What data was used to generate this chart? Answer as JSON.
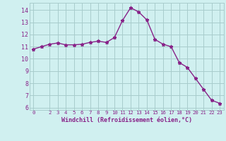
{
  "x": [
    0,
    1,
    2,
    3,
    4,
    5,
    6,
    7,
    8,
    9,
    10,
    11,
    12,
    13,
    14,
    15,
    16,
    17,
    18,
    19,
    20,
    21,
    22,
    23
  ],
  "y": [
    10.8,
    11.0,
    11.2,
    11.3,
    11.15,
    11.15,
    11.2,
    11.35,
    11.45,
    11.35,
    11.75,
    13.15,
    14.2,
    13.85,
    13.2,
    11.6,
    11.2,
    11.0,
    9.7,
    9.3,
    8.4,
    7.5,
    6.6,
    6.35
  ],
  "line_color": "#882288",
  "marker": "*",
  "markersize": 3.5,
  "linewidth": 1.0,
  "bg_color": "#d0f0f0",
  "grid_color": "#a8cccc",
  "tick_color": "#882288",
  "label_color": "#882288",
  "xlabel": "Windchill (Refroidissement éolien,°C)",
  "xlim_left": -0.5,
  "xlim_right": 23.5,
  "ylim_bottom": 5.8,
  "ylim_top": 14.6,
  "yticks": [
    6,
    7,
    8,
    9,
    10,
    11,
    12,
    13,
    14
  ],
  "xticks": [
    0,
    2,
    3,
    4,
    5,
    6,
    7,
    8,
    9,
    10,
    11,
    12,
    13,
    14,
    15,
    16,
    17,
    18,
    19,
    20,
    21,
    22,
    23
  ],
  "xlabel_fontsize": 6.0,
  "xtick_fontsize": 5.2,
  "ytick_fontsize": 6.0
}
